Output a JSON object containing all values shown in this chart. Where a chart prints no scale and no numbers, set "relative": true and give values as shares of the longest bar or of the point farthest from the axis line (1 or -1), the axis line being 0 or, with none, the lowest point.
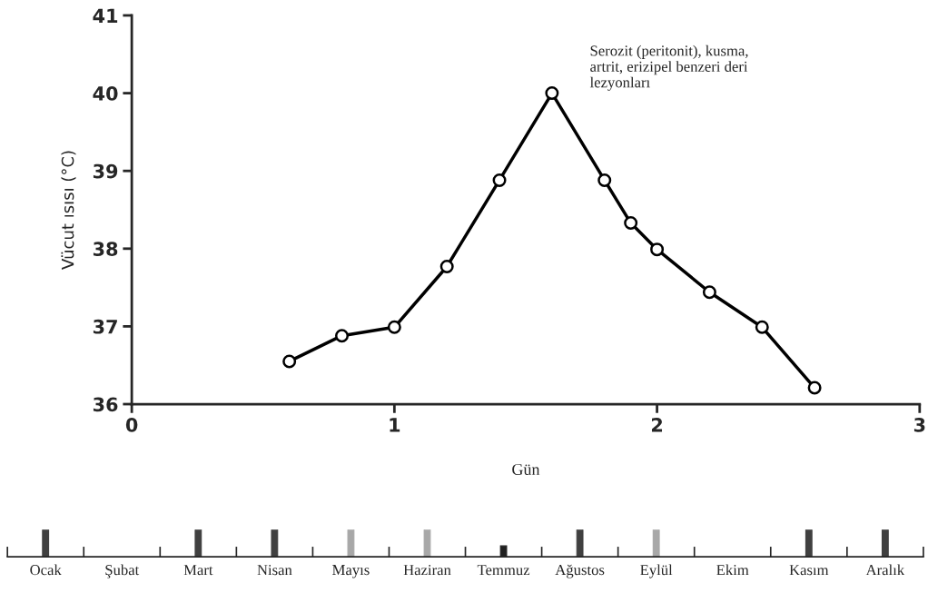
{
  "chart_data": [
    {
      "type": "line",
      "xlabel": "Gün",
      "ylabel": "Vücut ısısı (°C)",
      "xlim": [
        0,
        3
      ],
      "xticks": [
        0,
        1,
        2,
        3
      ],
      "ylim": [
        36,
        41
      ],
      "yticks": [
        36,
        37,
        38,
        39,
        40,
        41
      ],
      "marker": "circle",
      "line_style": "solid",
      "grid": false,
      "series": [
        {
          "color": "#000000",
          "x": [
            0.6,
            0.8,
            1.0,
            1.2,
            1.4,
            1.6,
            1.8,
            1.9,
            2.0,
            2.2,
            2.4,
            2.6
          ],
          "values": [
            36.55,
            36.88,
            36.99,
            37.77,
            38.88,
            40.0,
            38.88,
            38.33,
            37.99,
            37.44,
            36.99,
            36.21
          ]
        }
      ],
      "annotations": [
        {
          "text": "Serozit (peritonit), kusma,\nartrit, erizipel benzeri deri\nlezyonları",
          "x": 1.6,
          "y": 40.0
        }
      ]
    },
    {
      "type": "bar",
      "relative": true,
      "tick_labels": "x",
      "categories": [
        "Ocak",
        "Şubat",
        "Mart",
        "Nisan",
        "Mayıs",
        "Haziran",
        "Temmuz",
        "Ağustos",
        "Eylül",
        "Ekim",
        "Kasım",
        "Aralık"
      ],
      "values": [
        1,
        null,
        1,
        1,
        1,
        1,
        0.4,
        1,
        1,
        null,
        1,
        1
      ],
      "colors": [
        "#404040",
        null,
        "#404040",
        "#404040",
        "#a8a8a8",
        "#a8a8a8",
        "#202020",
        "#404040",
        "#a8a8a8",
        null,
        "#404040",
        "#404040"
      ]
    }
  ]
}
